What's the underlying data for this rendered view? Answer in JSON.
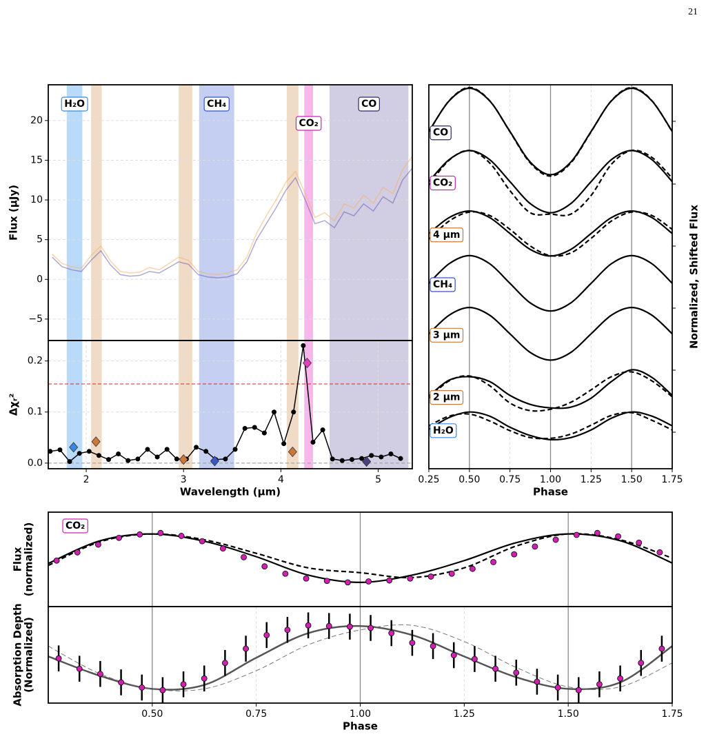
{
  "page_number": "21",
  "chart_data": [
    {
      "type": "line",
      "ylabel": "Flux (μJy)",
      "xlim": [
        1.61,
        5.35
      ],
      "ylim": [
        -7.7,
        24.5
      ],
      "yticks": [
        {
          "value": -5,
          "label": "−5"
        },
        0,
        5,
        10,
        15,
        20
      ],
      "grid": true,
      "bands": [
        {
          "range": [
            1.8,
            1.96
          ],
          "color": "#a9d1f7",
          "label": "H₂O",
          "label_color": "#3a87e0"
        },
        {
          "range": [
            2.05,
            2.16
          ],
          "color": "#ecd2b8"
        },
        {
          "range": [
            2.95,
            3.09
          ],
          "color": "#ecd2b8"
        },
        {
          "range": [
            3.16,
            3.52
          ],
          "color": "#b5c3ef",
          "label": "CH₄",
          "label_color": "#3550c8"
        },
        {
          "range": [
            4.06,
            4.18
          ],
          "color": "#ecd2b8"
        },
        {
          "range": [
            4.24,
            4.33
          ],
          "color": "#f2a6e6",
          "label": "CO₂",
          "label_color": "#d020b0"
        },
        {
          "range": [
            4.5,
            5.31
          ],
          "color": "#c6c0dc",
          "label": "CO",
          "label_color": "#2d2a5a"
        }
      ],
      "x": [
        1.65,
        1.75,
        1.85,
        1.95,
        2.05,
        2.15,
        2.25,
        2.35,
        2.45,
        2.55,
        2.65,
        2.75,
        2.85,
        2.95,
        3.05,
        3.15,
        3.25,
        3.35,
        3.45,
        3.55,
        3.65,
        3.75,
        3.85,
        3.95,
        4.05,
        4.15,
        4.25,
        4.35,
        4.45,
        4.55,
        4.65,
        4.75,
        4.85,
        4.95,
        5.05,
        5.15,
        5.25,
        5.35
      ],
      "series": [
        {
          "color": "#f5b066",
          "values": [
            3.2,
            2.0,
            1.6,
            1.4,
            3.0,
            4.2,
            2.3,
            1.0,
            0.8,
            0.9,
            1.5,
            1.2,
            2.0,
            2.8,
            2.4,
            1.0,
            0.7,
            0.6,
            0.8,
            1.2,
            2.8,
            5.8,
            8.0,
            10.0,
            12.2,
            13.6,
            10.8,
            7.8,
            8.4,
            7.4,
            9.5,
            9.0,
            10.6,
            9.6,
            11.6,
            10.8,
            13.8,
            15.5
          ]
        },
        {
          "color": "#6f5fae",
          "values": [
            2.8,
            1.6,
            1.2,
            1.0,
            2.4,
            3.6,
            1.8,
            0.6,
            0.4,
            0.5,
            1.0,
            0.8,
            1.5,
            2.2,
            1.9,
            0.6,
            0.3,
            0.2,
            0.3,
            0.7,
            2.2,
            5.0,
            7.0,
            9.0,
            11.2,
            12.8,
            10.0,
            7.0,
            7.4,
            6.5,
            8.5,
            8.0,
            9.5,
            8.6,
            10.4,
            9.6,
            12.5,
            14.0
          ]
        }
      ]
    },
    {
      "type": "line",
      "ylabel": "Δχᵣ²",
      "xlabel": "Wavelength (μm)",
      "xlim": [
        1.61,
        5.35
      ],
      "ylim": [
        -0.011,
        0.24
      ],
      "xticks": [
        2,
        3,
        4,
        5
      ],
      "yticks": [
        {
          "value": 0,
          "label": "0.0"
        },
        0.1,
        0.2
      ],
      "grid": true,
      "hlines": [
        {
          "value": 0.155,
          "color": "#e02020"
        },
        {
          "value": 0,
          "color": "#999999"
        }
      ],
      "x": [
        1.63,
        1.73,
        1.83,
        1.93,
        2.03,
        2.13,
        2.23,
        2.33,
        2.43,
        2.53,
        2.63,
        2.73,
        2.83,
        2.93,
        3.03,
        3.13,
        3.23,
        3.33,
        3.43,
        3.53,
        3.63,
        3.73,
        3.83,
        3.93,
        4.03,
        4.13,
        4.23,
        4.33,
        4.43,
        4.53,
        4.63,
        4.73,
        4.83,
        4.93,
        5.03,
        5.13,
        5.23
      ],
      "series": [
        {
          "color": "#000000",
          "markers": true,
          "values": [
            0.023,
            0.026,
            0.003,
            0.019,
            0.023,
            0.015,
            0.007,
            0.018,
            0.005,
            0.008,
            0.027,
            0.012,
            0.027,
            0.008,
            0.008,
            0.031,
            0.023,
            0.007,
            0.008,
            0.027,
            0.068,
            0.07,
            0.059,
            0.1,
            0.038,
            0.1,
            0.23,
            0.041,
            0.065,
            0.008,
            0.005,
            0.007,
            0.009,
            0.015,
            0.012,
            0.018,
            0.009
          ]
        }
      ],
      "highlights": {
        "x": [
          1.87,
          2.1,
          3.0,
          3.32,
          4.12,
          4.27,
          4.88
        ],
        "values": [
          0.031,
          0.042,
          0.007,
          0.004,
          0.022,
          0.196,
          0.003
        ],
        "colors": [
          "#3a87e0",
          "#c9793a",
          "#c9793a",
          "#3a55c8",
          "#c9793a",
          "#e040c0",
          "#4a3f80"
        ]
      }
    },
    {
      "type": "line",
      "xlabel": "Phase",
      "ylabel": "Normalized, Shifted Flux",
      "ylabel_side": "right",
      "xlim": [
        0.25,
        1.75
      ],
      "ylim": [
        0,
        55.5
      ],
      "xticks": [
        0.25,
        {
          "value": 0.5,
          "label": "0.50"
        },
        0.75,
        {
          "value": 1,
          "label": "1.00"
        },
        1.25,
        {
          "value": 1.5,
          "label": "1.50"
        },
        1.75
      ],
      "grid": true,
      "vlines": [
        0.5,
        1,
        1.5
      ],
      "smooth": true,
      "line_color": "#000000",
      "x": [
        0.25,
        0.375,
        0.5,
        0.625,
        0.75,
        0.875,
        1,
        1.125,
        1.25,
        1.375,
        1.5,
        1.625,
        1.75
      ],
      "series": [
        {
          "name": "CO",
          "color": "#2d2a5a",
          "values": [
            48.75,
            53.17,
            55.0,
            53.17,
            48.75,
            44.33,
            42.5,
            44.33,
            48.75,
            53.17,
            55.0,
            53.17,
            48.75
          ],
          "alt_values": [
            48.7,
            53.2,
            55.1,
            53.2,
            48.7,
            44.2,
            42.3,
            44.2,
            48.7,
            53.2,
            55.1,
            53.2,
            48.7
          ]
        },
        {
          "name": "CO₂",
          "color": "#d020b0",
          "values": [
            41.5,
            44.68,
            46,
            44.68,
            41.5,
            38.32,
            37,
            38.32,
            41.5,
            44.68,
            46,
            44.68,
            41.5
          ],
          "alt_values": [
            41.0,
            44.6,
            46.0,
            44.2,
            40.2,
            37.0,
            36.8,
            36.8,
            39.5,
            44.0,
            46.0,
            45.0,
            42.0
          ]
        },
        {
          "name": "4 μm",
          "color": "#c9793a",
          "values": [
            34,
            36.3,
            37.25,
            36.3,
            34,
            31.7,
            30.75,
            31.7,
            34,
            36.3,
            37.25,
            36.3,
            34
          ],
          "alt_values": [
            33.2,
            35.8,
            37.1,
            36.6,
            34.6,
            32.2,
            30.8,
            31.2,
            33.3,
            35.8,
            37.1,
            36.6,
            34.6
          ]
        },
        {
          "name": "CH₄",
          "color": "#3550c8",
          "values": [
            26.8,
            29.63,
            30.8,
            29.63,
            26.8,
            23.97,
            22.8,
            23.97,
            26.8,
            29.63,
            30.8,
            29.63,
            26.8
          ]
        },
        {
          "name": "3 μm",
          "color": "#c9793a",
          "values": [
            19.5,
            22.19,
            23.3,
            22.19,
            19.5,
            16.81,
            15.7,
            16.81,
            19.5,
            22.19,
            23.3,
            22.19,
            19.5
          ]
        },
        {
          "name": "2 μm",
          "color": "#c9793a",
          "values": [
            10.5,
            12.8,
            13.3,
            12.6,
            10.6,
            9.3,
            8.8,
            8.9,
            10.2,
            12.6,
            14.3,
            13.2,
            10.6
          ],
          "alt_values": [
            10.2,
            12.7,
            13.4,
            12.0,
            9.5,
            8.4,
            8.6,
            9.6,
            11.4,
            13.3,
            14.0,
            12.7,
            10.4
          ]
        },
        {
          "name": "H₂O",
          "color": "#3a87e0",
          "values": [
            5.7,
            7.4,
            8.2,
            7.6,
            6.0,
            4.8,
            4.2,
            4.5,
            5.6,
            7.3,
            8.2,
            7.6,
            6.2
          ],
          "alt_values": [
            6.2,
            7.6,
            7.9,
            6.9,
            5.5,
            4.5,
            4.4,
            5.0,
            6.3,
            7.7,
            8.1,
            7.0,
            5.6
          ]
        }
      ]
    },
    {
      "type": "line",
      "ylabel": [
        "Flux",
        "(normalized)"
      ],
      "badge": "CO₂",
      "badge_color": "#d020b0",
      "xlim": [
        0.25,
        1.75
      ],
      "ylim": [
        -0.5,
        1.45
      ],
      "vlines": [
        0.5,
        1,
        1.5
      ],
      "smooth": true,
      "x": [
        0.25,
        0.375,
        0.5,
        0.625,
        0.75,
        0.875,
        1,
        1.125,
        1.25,
        1.375,
        1.5,
        1.625,
        1.75
      ],
      "series": [
        {
          "color": "#000000",
          "values": [
            0.39,
            0.86,
            1.0,
            0.85,
            0.53,
            0.15,
            0.0,
            0.15,
            0.45,
            0.82,
            1.0,
            0.86,
            0.4
          ]
        },
        {
          "color": "#000000",
          "dash": true,
          "values": [
            0.35,
            0.84,
            1.0,
            0.88,
            0.6,
            0.3,
            0.2,
            0.1,
            0.3,
            0.75,
            1.0,
            0.88,
            0.5
          ]
        }
      ],
      "points": {
        "color": "#d020b0",
        "x": [
          0.27,
          0.32,
          0.37,
          0.42,
          0.47,
          0.52,
          0.57,
          0.62,
          0.67,
          0.72,
          0.77,
          0.82,
          0.87,
          0.92,
          0.97,
          1.02,
          1.07,
          1.12,
          1.17,
          1.22,
          1.27,
          1.32,
          1.37,
          1.42,
          1.47,
          1.52,
          1.57,
          1.62,
          1.67,
          1.72
        ],
        "values": [
          0.45,
          0.62,
          0.78,
          0.92,
          0.99,
          1.02,
          0.96,
          0.85,
          0.7,
          0.52,
          0.33,
          0.18,
          0.08,
          0.03,
          0.0,
          0.02,
          0.04,
          0.08,
          0.12,
          0.18,
          0.28,
          0.42,
          0.58,
          0.74,
          0.88,
          0.98,
          1.02,
          0.95,
          0.82,
          0.62
        ]
      }
    },
    {
      "type": "line",
      "ylabel": [
        "Absorption Depth",
        "(Normalized)"
      ],
      "xlabel": "Phase",
      "xlim": [
        0.25,
        1.75
      ],
      "ylim": [
        -0.2,
        1.29
      ],
      "xticks": [
        {
          "value": 0.5,
          "label": "0.50"
        },
        0.75,
        {
          "value": 1,
          "label": "1.00"
        },
        1.25,
        {
          "value": 1.5,
          "label": "1.50"
        },
        1.75
      ],
      "grid": true,
      "vlines": [
        0.5,
        1,
        1.5
      ],
      "smooth": true,
      "x": [
        0.25,
        0.375,
        0.5,
        0.625,
        0.75,
        0.875,
        1,
        1.125,
        1.25,
        1.375,
        1.5,
        1.625,
        1.75
      ],
      "series": [
        {
          "color": "#555555",
          "width": 2.5,
          "values": [
            0.52,
            0.22,
            0.02,
            0.08,
            0.5,
            0.88,
            0.99,
            0.85,
            0.52,
            0.2,
            0.02,
            0.12,
            0.68
          ]
        },
        {
          "color": "#777777",
          "dash": true,
          "width": 1,
          "values": [
            0.68,
            0.25,
            0.02,
            0.02,
            0.3,
            0.7,
            0.93,
            1.0,
            0.75,
            0.35,
            0.05,
            0.05,
            0.42
          ]
        }
      ],
      "points": {
        "color": "#d020b0",
        "x": [
          0.275,
          0.325,
          0.375,
          0.425,
          0.475,
          0.525,
          0.575,
          0.625,
          0.675,
          0.725,
          0.775,
          0.825,
          0.875,
          0.925,
          0.975,
          1.025,
          1.075,
          1.125,
          1.175,
          1.225,
          1.275,
          1.325,
          1.375,
          1.425,
          1.475,
          1.525,
          1.575,
          1.625,
          1.675,
          1.725
        ],
        "values": [
          0.49,
          0.33,
          0.25,
          0.12,
          0.04,
          0.0,
          0.09,
          0.18,
          0.42,
          0.64,
          0.85,
          0.93,
          1.0,
          0.99,
          0.98,
          0.96,
          0.88,
          0.73,
          0.68,
          0.54,
          0.48,
          0.33,
          0.27,
          0.13,
          0.04,
          0.0,
          0.09,
          0.18,
          0.42,
          0.64
        ],
        "errors": [
          0.2,
          0.2,
          0.2,
          0.2,
          0.2,
          0.2,
          0.2,
          0.2,
          0.2,
          0.2,
          0.2,
          0.2,
          0.2,
          0.2,
          0.2,
          0.2,
          0.2,
          0.2,
          0.2,
          0.2,
          0.2,
          0.2,
          0.2,
          0.2,
          0.2,
          0.2,
          0.2,
          0.2,
          0.2,
          0.2
        ]
      }
    }
  ]
}
